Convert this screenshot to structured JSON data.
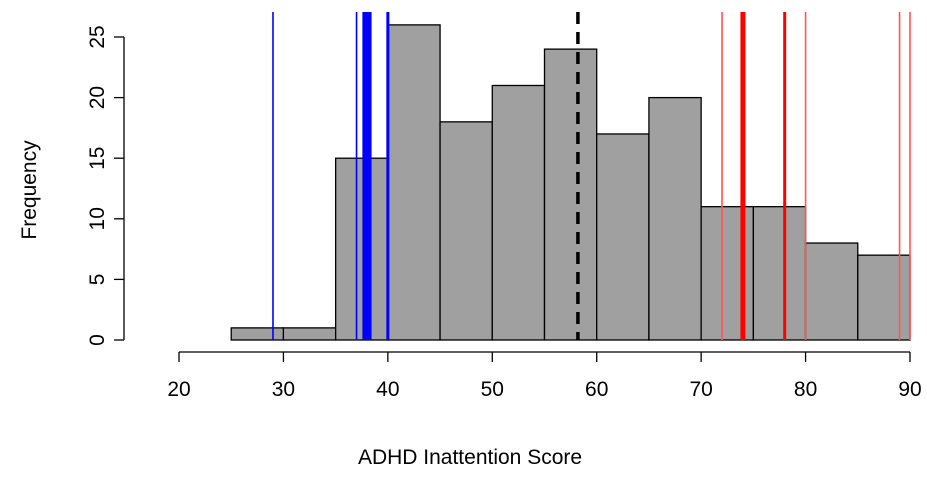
{
  "chart_data": {
    "type": "bar",
    "title": "",
    "xlabel": "ADHD Inattention Score",
    "ylabel": "Frequency",
    "bin_edges": [
      25,
      30,
      35,
      40,
      45,
      50,
      55,
      60,
      65,
      70,
      75,
      80,
      85,
      90
    ],
    "counts": [
      1,
      1,
      15,
      26,
      18,
      21,
      24,
      17,
      20,
      11,
      11,
      8,
      7
    ],
    "xlim": [
      20,
      90
    ],
    "ylim": [
      0,
      26
    ],
    "x_ticks": [
      20,
      30,
      40,
      50,
      60,
      70,
      80,
      90
    ],
    "y_ticks": [
      0,
      5,
      10,
      15,
      20,
      25
    ],
    "bar_fill": "#a0a0a0",
    "reference_lines": [
      {
        "x": 58.2,
        "color": "#000000",
        "style": "dashed",
        "weight": "thick"
      },
      {
        "x": 29,
        "color": "#0000ff",
        "style": "solid",
        "weight": "thin"
      },
      {
        "x": 37,
        "color": "#0000ff",
        "style": "solid",
        "weight": "thin"
      },
      {
        "x": 37.8,
        "color": "#0000ff",
        "style": "solid",
        "weight": "heavy"
      },
      {
        "x": 38.2,
        "color": "#0000ff",
        "style": "solid",
        "weight": "heavy"
      },
      {
        "x": 40,
        "color": "#0000ff",
        "style": "solid",
        "weight": "medium"
      },
      {
        "x": 72,
        "color": "#ff5555",
        "style": "solid",
        "weight": "thin"
      },
      {
        "x": 74,
        "color": "#ff0000",
        "style": "solid",
        "weight": "heavy"
      },
      {
        "x": 78,
        "color": "#ff0000",
        "style": "solid",
        "weight": "medium"
      },
      {
        "x": 80,
        "color": "#ff5555",
        "style": "solid",
        "weight": "thin"
      },
      {
        "x": 89,
        "color": "#ff5555",
        "style": "solid",
        "weight": "thin"
      },
      {
        "x": 90,
        "color": "#ff5555",
        "style": "solid",
        "weight": "thin"
      }
    ]
  }
}
